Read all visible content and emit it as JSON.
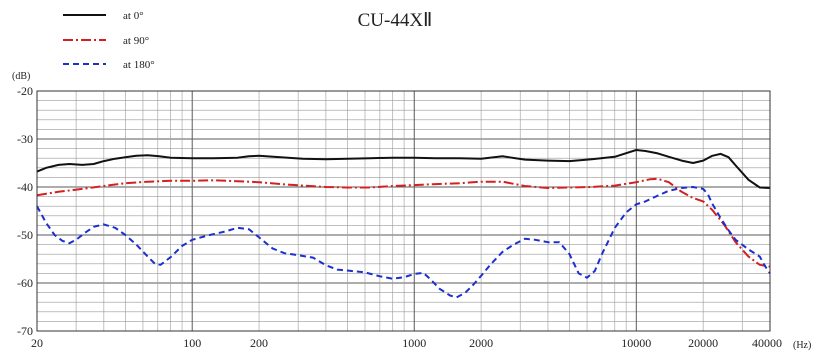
{
  "chart_data": {
    "type": "line",
    "title": "CU-44XⅡ",
    "ylabel": "(dB)",
    "xlabel": "",
    "x_unit": "(Hz)",
    "x_scale": "log",
    "xlim": [
      20,
      40000
    ],
    "ylim": [
      -70,
      -20
    ],
    "grid": true,
    "legend_position": "top-left",
    "x_tick_labels": [
      {
        "value": 20,
        "label": "20"
      },
      {
        "value": 100,
        "label": "100"
      },
      {
        "value": 200,
        "label": "200"
      },
      {
        "value": 1000,
        "label": "1000"
      },
      {
        "value": 2000,
        "label": "2000"
      },
      {
        "value": 10000,
        "label": "10000"
      },
      {
        "value": 20000,
        "label": "20000"
      },
      {
        "value": 40000,
        "label": "40000"
      }
    ],
    "y_tick_labels": [
      {
        "value": -20,
        "label": "-20"
      },
      {
        "value": -30,
        "label": "-30"
      },
      {
        "value": -40,
        "label": "-40"
      },
      {
        "value": -50,
        "label": "-50"
      },
      {
        "value": -60,
        "label": "-60"
      },
      {
        "value": -70,
        "label": "-70"
      }
    ],
    "series": [
      {
        "name": "at 0°",
        "color": "#111111",
        "dash": "solid",
        "points": [
          [
            20,
            -36.8
          ],
          [
            22,
            -36
          ],
          [
            25,
            -35.4
          ],
          [
            28,
            -35.2
          ],
          [
            32,
            -35.4
          ],
          [
            36,
            -35.2
          ],
          [
            40,
            -34.6
          ],
          [
            45,
            -34.1
          ],
          [
            50,
            -33.8
          ],
          [
            56,
            -33.5
          ],
          [
            63,
            -33.4
          ],
          [
            71,
            -33.6
          ],
          [
            80,
            -33.9
          ],
          [
            100,
            -34.0
          ],
          [
            125,
            -34.0
          ],
          [
            160,
            -33.9
          ],
          [
            180,
            -33.6
          ],
          [
            200,
            -33.5
          ],
          [
            250,
            -33.8
          ],
          [
            315,
            -34.1
          ],
          [
            400,
            -34.2
          ],
          [
            500,
            -34.1
          ],
          [
            630,
            -34.0
          ],
          [
            800,
            -33.9
          ],
          [
            1000,
            -33.9
          ],
          [
            1250,
            -34.0
          ],
          [
            1600,
            -34.0
          ],
          [
            2000,
            -34.1
          ],
          [
            2500,
            -33.6
          ],
          [
            3150,
            -34.3
          ],
          [
            4000,
            -34.5
          ],
          [
            5000,
            -34.6
          ],
          [
            6300,
            -34.2
          ],
          [
            8000,
            -33.7
          ],
          [
            10000,
            -32.3
          ],
          [
            11000,
            -32.5
          ],
          [
            12500,
            -33.0
          ],
          [
            14000,
            -33.7
          ],
          [
            16000,
            -34.5
          ],
          [
            18000,
            -35.0
          ],
          [
            20000,
            -34.5
          ],
          [
            22000,
            -33.5
          ],
          [
            24000,
            -33.1
          ],
          [
            26000,
            -33.8
          ],
          [
            28000,
            -35.5
          ],
          [
            32000,
            -38.5
          ],
          [
            36000,
            -40.1
          ],
          [
            40000,
            -40.2
          ]
        ]
      },
      {
        "name": "at 90°",
        "color": "#d42020",
        "dash": "dashdot",
        "points": [
          [
            20,
            -41.7
          ],
          [
            25,
            -41.0
          ],
          [
            32,
            -40.4
          ],
          [
            40,
            -39.8
          ],
          [
            50,
            -39.2
          ],
          [
            63,
            -38.9
          ],
          [
            80,
            -38.7
          ],
          [
            100,
            -38.7
          ],
          [
            125,
            -38.6
          ],
          [
            160,
            -38.8
          ],
          [
            200,
            -39.0
          ],
          [
            250,
            -39.4
          ],
          [
            315,
            -39.7
          ],
          [
            400,
            -40.0
          ],
          [
            500,
            -40.1
          ],
          [
            630,
            -40.1
          ],
          [
            800,
            -39.8
          ],
          [
            1000,
            -39.6
          ],
          [
            1250,
            -39.4
          ],
          [
            1600,
            -39.2
          ],
          [
            2000,
            -38.9
          ],
          [
            2500,
            -38.9
          ],
          [
            3150,
            -39.8
          ],
          [
            4000,
            -40.2
          ],
          [
            5000,
            -40.1
          ],
          [
            6300,
            -40.0
          ],
          [
            8000,
            -39.7
          ],
          [
            10000,
            -39.0
          ],
          [
            11500,
            -38.4
          ],
          [
            12500,
            -38.3
          ],
          [
            14000,
            -39.0
          ],
          [
            16000,
            -41.0
          ],
          [
            18000,
            -42.3
          ],
          [
            20000,
            -43.0
          ],
          [
            22000,
            -44.8
          ],
          [
            25000,
            -48.0
          ],
          [
            28000,
            -51.5
          ],
          [
            32000,
            -54.5
          ],
          [
            36000,
            -56.2
          ],
          [
            40000,
            -56.6
          ]
        ]
      },
      {
        "name": "at 180°",
        "color": "#1c2fd0",
        "dash": "dashed",
        "points": [
          [
            20,
            -44
          ],
          [
            22,
            -47.5
          ],
          [
            24,
            -50
          ],
          [
            26,
            -51.2
          ],
          [
            28,
            -51.7
          ],
          [
            30,
            -51.0
          ],
          [
            33,
            -49.5
          ],
          [
            36,
            -48.3
          ],
          [
            40,
            -47.8
          ],
          [
            45,
            -48.5
          ],
          [
            50,
            -50.0
          ],
          [
            56,
            -52.0
          ],
          [
            63,
            -54.5
          ],
          [
            68,
            -56.0
          ],
          [
            72,
            -56.2
          ],
          [
            80,
            -54.6
          ],
          [
            90,
            -52.3
          ],
          [
            100,
            -51.0
          ],
          [
            120,
            -50.0
          ],
          [
            140,
            -49.3
          ],
          [
            160,
            -48.5
          ],
          [
            180,
            -48.8
          ],
          [
            200,
            -50.5
          ],
          [
            230,
            -52.8
          ],
          [
            260,
            -53.8
          ],
          [
            300,
            -54.2
          ],
          [
            350,
            -54.7
          ],
          [
            400,
            -56.3
          ],
          [
            450,
            -57.2
          ],
          [
            500,
            -57.4
          ],
          [
            600,
            -57.8
          ],
          [
            700,
            -58.6
          ],
          [
            800,
            -59.1
          ],
          [
            900,
            -58.8
          ],
          [
            1000,
            -58.1
          ],
          [
            1100,
            -57.9
          ],
          [
            1200,
            -59.5
          ],
          [
            1300,
            -61.2
          ],
          [
            1450,
            -62.6
          ],
          [
            1550,
            -63.0
          ],
          [
            1700,
            -62.0
          ],
          [
            1850,
            -60.3
          ],
          [
            2000,
            -58.5
          ],
          [
            2200,
            -56.2
          ],
          [
            2500,
            -53.5
          ],
          [
            2800,
            -52.0
          ],
          [
            3150,
            -50.8
          ],
          [
            3500,
            -51.0
          ],
          [
            4000,
            -51.5
          ],
          [
            4500,
            -51.5
          ],
          [
            5000,
            -54.0
          ],
          [
            5500,
            -58.0
          ],
          [
            6000,
            -58.9
          ],
          [
            6500,
            -57.5
          ],
          [
            7000,
            -54.0
          ],
          [
            8000,
            -48.5
          ],
          [
            9000,
            -45.3
          ],
          [
            10000,
            -43.6
          ],
          [
            11000,
            -43.0
          ],
          [
            12500,
            -41.8
          ],
          [
            14000,
            -40.8
          ],
          [
            16000,
            -40.2
          ],
          [
            18000,
            -40.0
          ],
          [
            20000,
            -40.4
          ],
          [
            21000,
            -41.5
          ],
          [
            22000,
            -43.5
          ],
          [
            24000,
            -46.5
          ],
          [
            26000,
            -49.0
          ],
          [
            28000,
            -51.0
          ],
          [
            32000,
            -53.0
          ],
          [
            36000,
            -54.5
          ],
          [
            38000,
            -56.5
          ],
          [
            40000,
            -58.0
          ]
        ]
      }
    ]
  }
}
